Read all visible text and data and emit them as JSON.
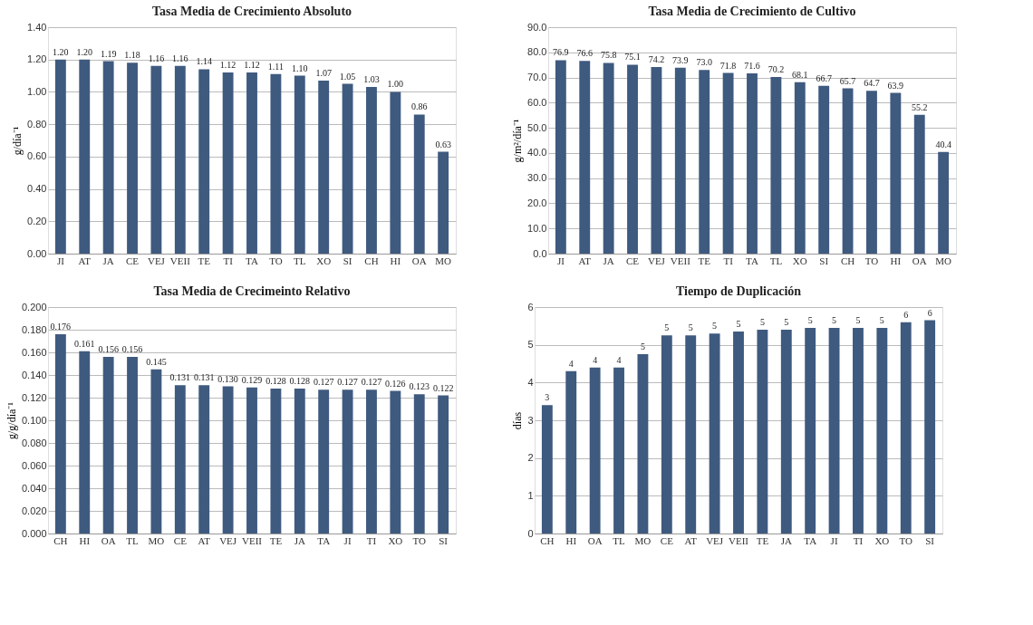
{
  "chart_data": [
    {
      "type": "bar",
      "title": "Tasa Media de Crecimiento Absoluto",
      "ylabel": "g/día⁻¹",
      "categories": [
        "JI",
        "AT",
        "JA",
        "CE",
        "VEJ",
        "VEII",
        "TE",
        "TI",
        "TA",
        "TO",
        "TL",
        "XO",
        "SI",
        "CH",
        "HI",
        "OA",
        "MO"
      ],
      "values": [
        1.2,
        1.2,
        1.19,
        1.18,
        1.16,
        1.16,
        1.14,
        1.12,
        1.12,
        1.11,
        1.1,
        1.07,
        1.05,
        1.03,
        1.0,
        0.86,
        0.63
      ],
      "value_labels": [
        "1.20",
        "1.20",
        "1.19",
        "1.18",
        "1.16",
        "1.16",
        "1.14",
        "1.12",
        "1.12",
        "1.11",
        "1.10",
        "1.07",
        "1.05",
        "1.03",
        "1.00",
        "0.86",
        "0.63"
      ],
      "color": "#3f5a7f",
      "ylim": [
        0,
        1.4
      ],
      "yticks": [
        {
          "value": 0,
          "label": "0.00"
        },
        {
          "value": 0.2,
          "label": "0.20"
        },
        {
          "value": 0.4,
          "label": "0.40"
        },
        {
          "value": 0.6,
          "label": "0.60"
        },
        {
          "value": 0.8,
          "label": "0.80"
        },
        {
          "value": 1,
          "label": "1.00"
        },
        {
          "value": 1.2,
          "label": "1.20"
        },
        {
          "value": 1.4,
          "label": "1.40"
        }
      ],
      "grid": "y"
    },
    {
      "type": "bar",
      "title": "Tasa Media de Crecimiento de Cultivo",
      "ylabel": "g/m²/día⁻¹",
      "categories": [
        "JI",
        "AT",
        "JA",
        "CE",
        "VEJ",
        "VEII",
        "TE",
        "TI",
        "TA",
        "TL",
        "XO",
        "SI",
        "CH",
        "TO",
        "HI",
        "OA",
        "MO"
      ],
      "values": [
        76.9,
        76.6,
        75.8,
        75.1,
        74.2,
        73.9,
        73.0,
        71.8,
        71.6,
        70.2,
        68.1,
        66.7,
        65.7,
        64.7,
        63.9,
        55.2,
        40.4
      ],
      "value_labels": [
        "76.9",
        "76.6",
        "75.8",
        "75.1",
        "74.2",
        "73.9",
        "73.0",
        "71.8",
        "71.6",
        "70.2",
        "68.1",
        "66.7",
        "65.7",
        "64.7",
        "63.9",
        "55.2",
        "40.4"
      ],
      "color": "#3f5a7f",
      "ylim": [
        0,
        90
      ],
      "yticks": [
        {
          "value": 0,
          "label": "0.0"
        },
        {
          "value": 10,
          "label": "10.0"
        },
        {
          "value": 20,
          "label": "20.0"
        },
        {
          "value": 30,
          "label": "30.0"
        },
        {
          "value": 40,
          "label": "40.0"
        },
        {
          "value": 50,
          "label": "50.0"
        },
        {
          "value": 60,
          "label": "60.0"
        },
        {
          "value": 70,
          "label": "70.0"
        },
        {
          "value": 80,
          "label": "80.0"
        },
        {
          "value": 90,
          "label": "90.0"
        }
      ],
      "grid": "y"
    },
    {
      "type": "bar",
      "title": "Tasa Media de Crecimeinto Relativo",
      "ylabel": "g/g/día⁻¹",
      "categories": [
        "CH",
        "HI",
        "OA",
        "TL",
        "MO",
        "CE",
        "AT",
        "VEJ",
        "VEII",
        "TE",
        "JA",
        "TA",
        "JI",
        "TI",
        "XO",
        "TO",
        "SI"
      ],
      "values": [
        0.176,
        0.161,
        0.156,
        0.156,
        0.145,
        0.131,
        0.131,
        0.13,
        0.129,
        0.128,
        0.128,
        0.127,
        0.127,
        0.127,
        0.126,
        0.123,
        0.122
      ],
      "value_labels": [
        "0.176",
        "0.161",
        "0.156",
        "0.156",
        "0.145",
        "0.131",
        "0.131",
        "0.130",
        "0.129",
        "0.128",
        "0.128",
        "0.127",
        "0.127",
        "0.127",
        "0.126",
        "0.123",
        "0.122"
      ],
      "color": "#3f5a7f",
      "ylim": [
        0,
        0.2
      ],
      "yticks": [
        {
          "value": 0,
          "label": "0.000"
        },
        {
          "value": 0.02,
          "label": "0.020"
        },
        {
          "value": 0.04,
          "label": "0.040"
        },
        {
          "value": 0.06,
          "label": "0.060"
        },
        {
          "value": 0.08,
          "label": "0.080"
        },
        {
          "value": 0.1,
          "label": "0.100"
        },
        {
          "value": 0.12,
          "label": "0.120"
        },
        {
          "value": 0.14,
          "label": "0.140"
        },
        {
          "value": 0.16,
          "label": "0.160"
        },
        {
          "value": 0.18,
          "label": "0.180"
        },
        {
          "value": 0.2,
          "label": "0.200"
        }
      ],
      "grid": "y"
    },
    {
      "type": "bar",
      "title": "Tiempo de Duplicación",
      "ylabel": "días",
      "categories": [
        "CH",
        "HI",
        "OA",
        "TL",
        "MO",
        "CE",
        "AT",
        "VEJ",
        "VEII",
        "TE",
        "JA",
        "TA",
        "JI",
        "TI",
        "XO",
        "TO",
        "SI"
      ],
      "values": [
        3.4,
        4.3,
        4.4,
        4.4,
        4.75,
        5.25,
        5.25,
        5.3,
        5.35,
        5.4,
        5.4,
        5.45,
        5.45,
        5.45,
        5.45,
        5.6,
        5.65
      ],
      "value_labels": [
        "3",
        "4",
        "4",
        "4",
        "5",
        "5",
        "5",
        "5",
        "5",
        "5",
        "5",
        "5",
        "5",
        "5",
        "5",
        "6",
        "6"
      ],
      "color": "#3f5a7f",
      "ylim": [
        0,
        6
      ],
      "yticks": [
        0,
        1,
        2,
        3,
        4,
        5,
        6
      ],
      "grid": "y"
    }
  ]
}
